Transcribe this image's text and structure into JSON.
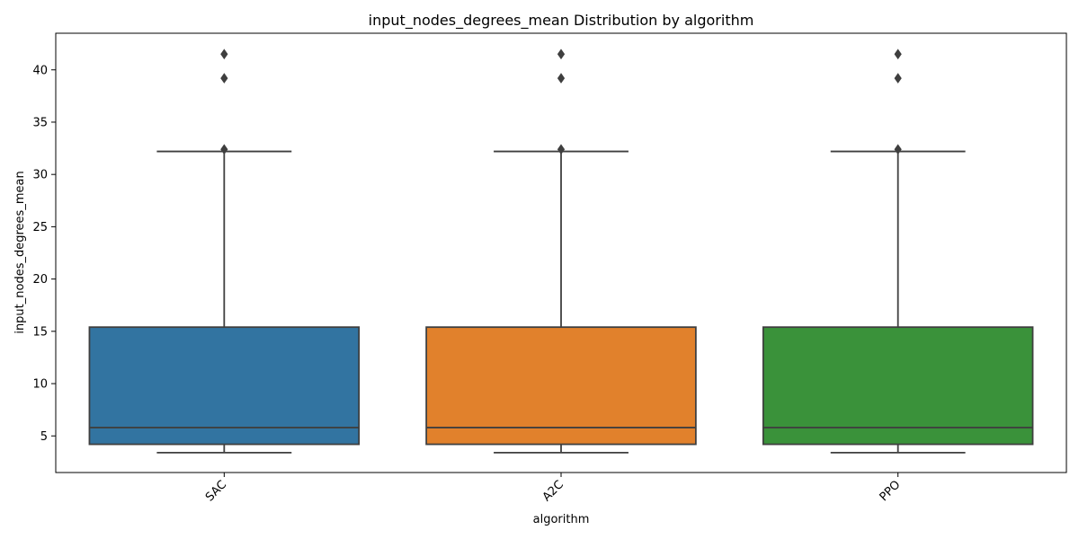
{
  "chart_data": {
    "type": "box",
    "title": "input_nodes_degrees_mean Distribution by algorithm",
    "xlabel": "algorithm",
    "ylabel": "input_nodes_degrees_mean",
    "ylim": [
      1.5,
      43.5
    ],
    "yticks": [
      5,
      10,
      15,
      20,
      25,
      30,
      35,
      40
    ],
    "categories": [
      "SAC",
      "A2C",
      "PPO"
    ],
    "colors": [
      "#3274a1",
      "#e1812c",
      "#3a923a"
    ],
    "series": [
      {
        "category": "SAC",
        "whisker_low": 3.4,
        "q1": 4.2,
        "median": 5.8,
        "q3": 15.4,
        "whisker_high": 32.2,
        "outliers": [
          32.4,
          39.2,
          41.5
        ]
      },
      {
        "category": "A2C",
        "whisker_low": 3.4,
        "q1": 4.2,
        "median": 5.8,
        "q3": 15.4,
        "whisker_high": 32.2,
        "outliers": [
          32.4,
          39.2,
          41.5
        ]
      },
      {
        "category": "PPO",
        "whisker_low": 3.4,
        "q1": 4.2,
        "median": 5.8,
        "q3": 15.4,
        "whisker_high": 32.2,
        "outliers": [
          32.4,
          39.2,
          41.5
        ]
      }
    ],
    "grid": false,
    "xtick_rotation_deg": 45
  }
}
